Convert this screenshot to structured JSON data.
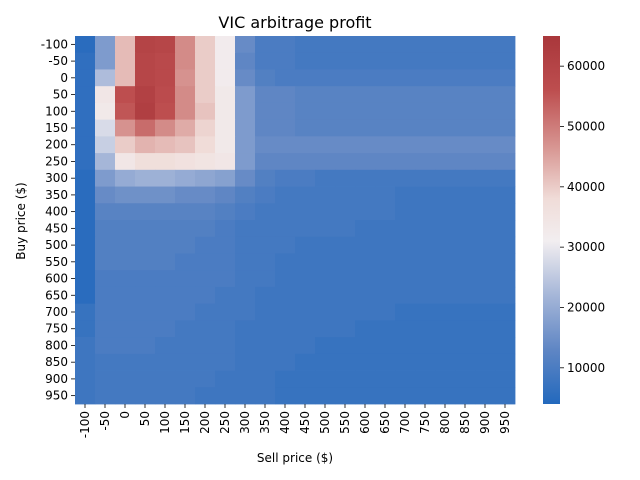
{
  "chart_data": {
    "type": "heatmap",
    "title": "VIC arbitrage profit",
    "xlabel": "Sell price ($)",
    "ylabel": "Buy price ($)",
    "x_categories": [
      "-100",
      "-50",
      "0",
      "50",
      "100",
      "150",
      "200",
      "250",
      "300",
      "350",
      "400",
      "450",
      "500",
      "550",
      "600",
      "650",
      "700",
      "750",
      "800",
      "850",
      "900",
      "950"
    ],
    "y_categories": [
      "-100",
      "-50",
      "0",
      "50",
      "100",
      "150",
      "200",
      "250",
      "300",
      "350",
      "400",
      "450",
      "500",
      "550",
      "600",
      "650",
      "700",
      "750",
      "800",
      "850",
      "900",
      "950"
    ],
    "colorbar": {
      "min": 4000,
      "max": 65000,
      "ticks": [
        10000,
        20000,
        30000,
        40000,
        50000,
        60000
      ],
      "tick_labels": [
        "10000",
        "20000",
        "30000",
        "40000",
        "50000",
        "60000"
      ],
      "colormap": "vlag",
      "stops": [
        {
          "value": 4000,
          "color": "#2369bd"
        },
        {
          "value": 13000,
          "color": "#5f86c4"
        },
        {
          "value": 22000,
          "color": "#a5b6d8"
        },
        {
          "value": 31000,
          "color": "#f2eef0"
        },
        {
          "value": 38000,
          "color": "#f0dcd8"
        },
        {
          "value": 46000,
          "color": "#d99a96"
        },
        {
          "value": 56000,
          "color": "#bd4e4f"
        },
        {
          "value": 65000,
          "color": "#a9373b"
        }
      ]
    },
    "values": [
      [
        5000,
        17000,
        42000,
        60000,
        59000,
        48000,
        40000,
        32000,
        14000,
        10000,
        10000,
        9000,
        9000,
        9000,
        9000,
        9000,
        9000,
        9000,
        9000,
        9000,
        9000,
        9000
      ],
      [
        6000,
        17000,
        42000,
        59000,
        58000,
        48000,
        40000,
        32000,
        13000,
        10000,
        10000,
        9000,
        9000,
        9000,
        9000,
        9000,
        9000,
        9000,
        9000,
        9000,
        9000,
        9000
      ],
      [
        6000,
        23000,
        42000,
        59000,
        58000,
        47000,
        40000,
        32000,
        14000,
        11000,
        10000,
        10000,
        10000,
        10000,
        10000,
        10000,
        10000,
        10000,
        10000,
        10000,
        10000,
        10000
      ],
      [
        6000,
        34000,
        56000,
        61000,
        57000,
        48000,
        40000,
        33000,
        17000,
        13000,
        13000,
        12000,
        12000,
        12000,
        12000,
        12000,
        12000,
        12000,
        12000,
        12000,
        12000,
        12000
      ],
      [
        6000,
        33000,
        55000,
        62000,
        56000,
        48000,
        41000,
        33000,
        17000,
        13000,
        13000,
        12000,
        12000,
        12000,
        12000,
        12000,
        12000,
        12000,
        12000,
        12000,
        12000,
        12000
      ],
      [
        6000,
        28000,
        47000,
        52000,
        48000,
        44000,
        39000,
        33000,
        17000,
        13000,
        13000,
        12000,
        12000,
        12000,
        12000,
        12000,
        12000,
        12000,
        12000,
        12000,
        12000,
        12000
      ],
      [
        6000,
        26000,
        40000,
        43000,
        42000,
        41000,
        38000,
        33000,
        17000,
        14000,
        14000,
        14000,
        14000,
        14000,
        14000,
        14000,
        14000,
        14000,
        14000,
        14000,
        14000,
        14000
      ],
      [
        6000,
        22000,
        34000,
        37000,
        37000,
        36000,
        35000,
        34000,
        17000,
        13000,
        13000,
        13000,
        13000,
        13000,
        13000,
        13000,
        13000,
        13000,
        13000,
        13000,
        13000,
        13000
      ],
      [
        5000,
        17000,
        20000,
        21000,
        21000,
        20000,
        19000,
        18000,
        14000,
        11000,
        10000,
        10000,
        9000,
        9000,
        9000,
        9000,
        9000,
        9000,
        9000,
        9000,
        9000,
        9000
      ],
      [
        5000,
        14000,
        15000,
        15000,
        15000,
        14000,
        14000,
        13000,
        11000,
        10000,
        9000,
        9000,
        9000,
        9000,
        9000,
        9000,
        8000,
        8000,
        8000,
        8000,
        8000,
        8000
      ],
      [
        5000,
        12000,
        12000,
        12000,
        12000,
        12000,
        12000,
        11000,
        10000,
        9000,
        9000,
        9000,
        9000,
        9000,
        9000,
        9000,
        8000,
        8000,
        8000,
        8000,
        8000,
        8000
      ],
      [
        5000,
        11000,
        11000,
        11000,
        11000,
        11000,
        11000,
        10000,
        9000,
        9000,
        9000,
        9000,
        9000,
        9000,
        8000,
        8000,
        8000,
        8000,
        8000,
        8000,
        8000,
        8000
      ],
      [
        5000,
        11000,
        11000,
        11000,
        11000,
        11000,
        10000,
        10000,
        9000,
        9000,
        9000,
        8000,
        8000,
        8000,
        8000,
        8000,
        8000,
        8000,
        8000,
        8000,
        8000,
        8000
      ],
      [
        5000,
        11000,
        11000,
        11000,
        11000,
        10000,
        10000,
        10000,
        9000,
        9000,
        8000,
        8000,
        8000,
        8000,
        8000,
        8000,
        8000,
        8000,
        8000,
        8000,
        8000,
        8000
      ],
      [
        5000,
        10000,
        10000,
        10000,
        10000,
        10000,
        10000,
        10000,
        9000,
        9000,
        8000,
        8000,
        8000,
        8000,
        8000,
        8000,
        8000,
        8000,
        8000,
        8000,
        8000,
        8000
      ],
      [
        5000,
        10000,
        10000,
        10000,
        10000,
        10000,
        10000,
        9000,
        9000,
        8000,
        8000,
        8000,
        8000,
        8000,
        8000,
        8000,
        8000,
        8000,
        8000,
        8000,
        8000,
        8000
      ],
      [
        7000,
        10000,
        10000,
        10000,
        10000,
        10000,
        9000,
        9000,
        9000,
        8000,
        8000,
        8000,
        8000,
        8000,
        8000,
        8000,
        7000,
        7000,
        7000,
        7000,
        7000,
        7000
      ],
      [
        7000,
        10000,
        10000,
        10000,
        10000,
        9000,
        9000,
        9000,
        8000,
        8000,
        8000,
        8000,
        8000,
        8000,
        7000,
        7000,
        7000,
        7000,
        7000,
        7000,
        7000,
        7000
      ],
      [
        8000,
        10000,
        10000,
        10000,
        9000,
        9000,
        9000,
        9000,
        8000,
        8000,
        8000,
        8000,
        7000,
        7000,
        7000,
        7000,
        7000,
        7000,
        7000,
        7000,
        7000,
        7000
      ],
      [
        8000,
        9000,
        9000,
        9000,
        9000,
        9000,
        9000,
        9000,
        8000,
        8000,
        8000,
        7000,
        7000,
        7000,
        7000,
        7000,
        7000,
        7000,
        7000,
        7000,
        7000,
        7000
      ],
      [
        8000,
        9000,
        9000,
        9000,
        9000,
        9000,
        9000,
        8000,
        8000,
        8000,
        7000,
        7000,
        7000,
        7000,
        7000,
        7000,
        7000,
        7000,
        7000,
        7000,
        7000,
        7000
      ],
      [
        8000,
        9000,
        9000,
        9000,
        9000,
        9000,
        8000,
        8000,
        8000,
        8000,
        7000,
        7000,
        7000,
        7000,
        7000,
        7000,
        7000,
        7000,
        7000,
        7000,
        7000,
        7000
      ]
    ]
  }
}
